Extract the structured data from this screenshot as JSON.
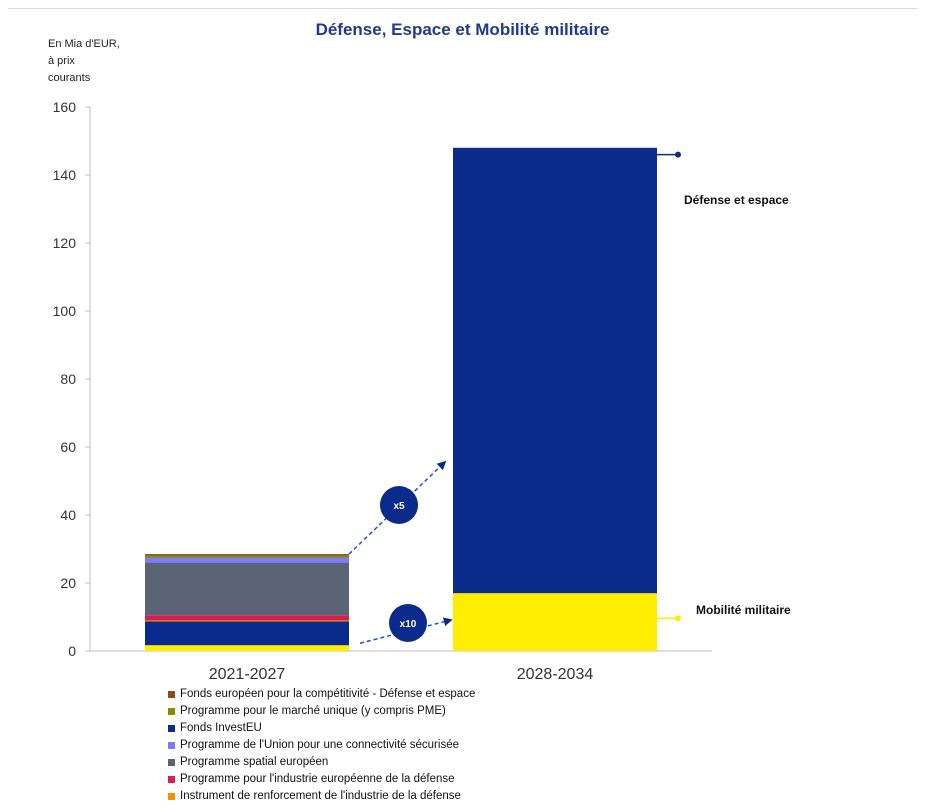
{
  "title": "Défense, Espace et Mobilité militaire",
  "unit_label": [
    "En Mia d'EUR,",
    "à prix",
    "courants"
  ],
  "chart_data": {
    "type": "bar",
    "stacked": true,
    "categories": [
      "2021-2027",
      "2028-2034"
    ],
    "ylim": [
      0,
      160
    ],
    "yticks": [
      0,
      20,
      40,
      60,
      80,
      100,
      120,
      140,
      160
    ],
    "grid": false,
    "series": [
      {
        "name": "Mobilité militaire",
        "color": "#ffed00",
        "values": [
          1.7,
          17
        ]
      },
      {
        "name": "Fonds InvestEU",
        "color": "#0b2b8c",
        "values": [
          7,
          0
        ]
      },
      {
        "name": "Instrument de renforcement de l'industrie de la défense",
        "color": "#ff8c00",
        "values": [
          0.3,
          0
        ]
      },
      {
        "name": "Programme pour l'industrie européenne de la défense",
        "color": "#d6204b",
        "values": [
          1.5,
          0
        ]
      },
      {
        "name": "Programme spatial européen",
        "color": "#5a6475",
        "values": [
          15.5,
          0
        ]
      },
      {
        "name": "Programme de l'Union pour une connectivité sécurisée",
        "color": "#7a7bff",
        "values": [
          1.5,
          0
        ]
      },
      {
        "name": "Programme pour le marché unique (y compris PME)",
        "color": "#8a8a00",
        "values": [
          0.6,
          0
        ]
      },
      {
        "name": "Fonds européen pour la compétitivité - Défense et espace",
        "color": "#8b4a16",
        "values": [
          0.4,
          0
        ]
      },
      {
        "name": "Défense et espace",
        "color": "#0b2b8c",
        "values": [
          0,
          131
        ]
      }
    ],
    "annotations": [
      {
        "text": "x5",
        "color": "#0b2b8c"
      },
      {
        "text": "x10",
        "color": "#0b2b8c"
      }
    ],
    "side_labels": [
      {
        "text": "Défense et espace",
        "series": "Défense et espace",
        "color": "#0b2b8c"
      },
      {
        "text": "Mobilité militaire",
        "series": "Mobilité militaire",
        "color": "#ffed00"
      }
    ]
  },
  "legend": [
    {
      "label": "Fonds européen pour la compétitivité - Défense et espace",
      "color": "#8b4a16"
    },
    {
      "label": "Programme pour le marché unique (y compris PME)",
      "color": "#8a8a00"
    },
    {
      "label": "Fonds InvestEU",
      "color": "#0b2b8c"
    },
    {
      "label": "Programme de l'Union pour une connectivité sécurisée",
      "color": "#7a7bff"
    },
    {
      "label": "Programme spatial européen",
      "color": "#5a6475"
    },
    {
      "label": "Programme pour l'industrie européenne de la défense",
      "color": "#d6204b"
    },
    {
      "label": "Instrument de renforcement de l'industrie de la défense",
      "color": "#ff8c00"
    }
  ]
}
